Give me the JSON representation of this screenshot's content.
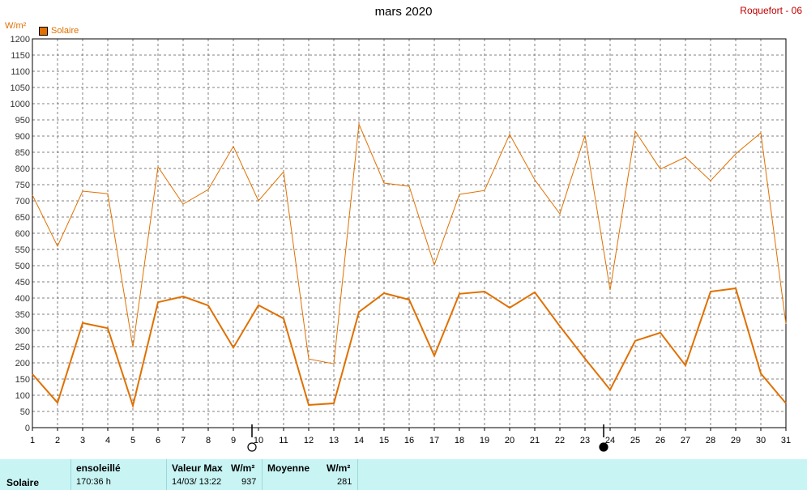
{
  "header": {
    "title": "mars 2020",
    "station": "Roquefort - 06",
    "unit": "W/m²"
  },
  "chart_data": {
    "type": "line",
    "title": "mars 2020",
    "ylabel": "W/m²",
    "ylim": [
      0,
      1200
    ],
    "yticks": [
      0,
      50,
      100,
      150,
      200,
      250,
      300,
      350,
      400,
      450,
      500,
      550,
      600,
      650,
      700,
      750,
      800,
      850,
      900,
      950,
      1000,
      1050,
      1100,
      1150,
      1200
    ],
    "x": [
      1,
      2,
      3,
      4,
      5,
      6,
      7,
      8,
      9,
      10,
      11,
      12,
      13,
      14,
      15,
      16,
      17,
      18,
      19,
      20,
      21,
      22,
      23,
      24,
      25,
      26,
      27,
      28,
      29,
      30,
      31
    ],
    "grid": true,
    "legend": "top-left",
    "series": [
      {
        "name": "Solaire",
        "color": "#e07000",
        "values": [
          718,
          560,
          730,
          722,
          248,
          805,
          690,
          735,
          868,
          700,
          790,
          212,
          197,
          937,
          755,
          745,
          502,
          720,
          732,
          905,
          765,
          660,
          902,
          425,
          915,
          798,
          835,
          762,
          845,
          910,
          320
        ]
      },
      {
        "color": "#e07000",
        "values": [
          165,
          77,
          323,
          307,
          68,
          387,
          405,
          377,
          247,
          378,
          337,
          70,
          75,
          357,
          415,
          395,
          222,
          413,
          420,
          370,
          418,
          313,
          213,
          117,
          268,
          293,
          192,
          420,
          430,
          167,
          75
        ]
      }
    ],
    "moon_markers": [
      {
        "day": 10,
        "phase": "new-moon-outline"
      },
      {
        "day": 24,
        "phase": "full-moon-filled"
      }
    ]
  },
  "legend": {
    "items": [
      {
        "label": "Solaire",
        "color": "#e07000"
      }
    ]
  },
  "footer": {
    "series_label": "Solaire",
    "sunshine_header": "ensoleillé",
    "sunshine_value": "170:36 h",
    "max_header": "Valeur Max",
    "max_unit": "W/m²",
    "max_datetime": "14/03/  13:22",
    "max_value": "937",
    "avg_header": "Moyenne",
    "avg_unit": "W/m²",
    "avg_value": "281"
  }
}
